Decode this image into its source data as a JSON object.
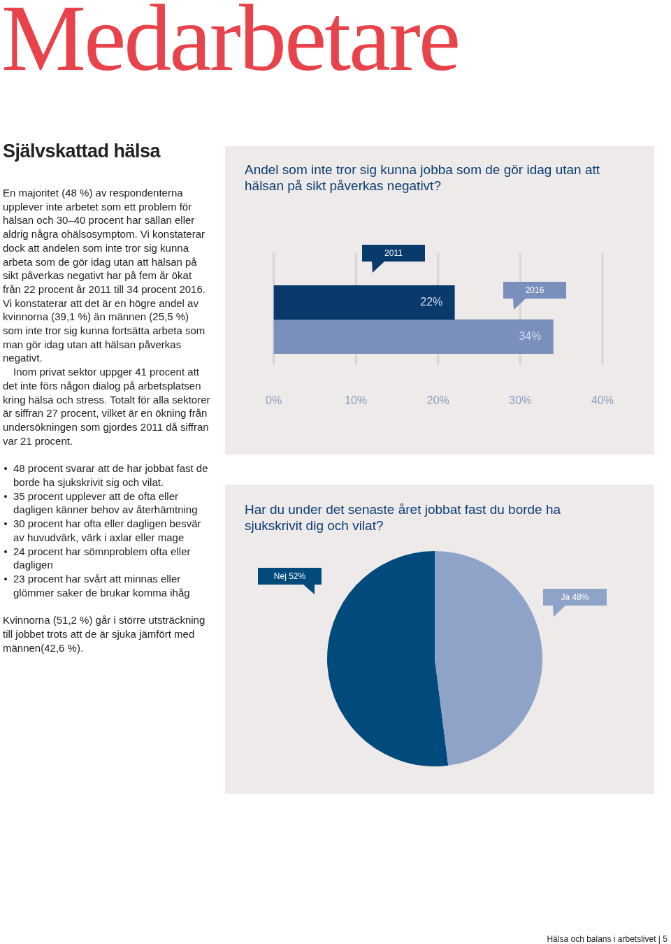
{
  "chart_data": [
    {
      "type": "other",
      "title": "Medarbetare",
      "subtitle": "Självskattad hälsa",
      "annotations": [
        "En majoritet (48 %) av respondenterna upplever inte arbetet som ett problem för hälsan och 30–40 procent har sällan eller aldrig några ohälsosymptom. Vi konstaterar dock att andelen som inte tror sig kunna arbeta som de gör idag utan att hälsan på sikt påverkas negativt har på fem år ökat från 22 procent år 2011 till 34 procent 2016. Vi konstaterar att det är en högre andel av kvinnorna (39,1 %) än männen (25,5 %) som inte tror sig kunna fortsätta arbeta som man gör idag utan att hälsan påverkas negativt.",
        "Inom privat sektor uppger 41 procent att det inte förs någon dialog på arbetsplatsen kring hälsa och stress. Totalt för alla sektorer är siffran 27 procent, vilket är en ökning från undersökningen som gjordes 2011 då siffran var 21 procent.",
        "48 procent svarar att de har jobbat fast de borde ha sjukskrivit sig och vilat.",
        "35 procent upplever att de ofta eller dagligen känner behov av återhämtning",
        "30 procent har ofta eller dagligen besvär av huvudvärk, värk i axlar eller mage",
        "24 procent har sömnproblem ofta eller dagligen",
        "23 procent har svårt att minnas eller glömmer saker de brukar komma ihåg",
        "Kvinnorna (51,2 %) går i större utsträckning till jobbet trots att de är sjuka jämfört med männen(42,6 %).",
        "Hälsa och balans i arbetslivet | 5"
      ]
    },
    {
      "type": "bar",
      "orientation": "horizontal",
      "title": "Andel som inte tror sig kunna jobba som de gör idag utan att hälsan på sikt påverkas negativt?",
      "categories": [
        null
      ],
      "series": [
        {
          "name": "2011",
          "color": "#0a3a6b",
          "values": [
            22
          ],
          "value_labels": [
            "22%"
          ]
        },
        {
          "name": "2016",
          "color": "#7b8fbc",
          "values": [
            34
          ],
          "value_labels": [
            "34%"
          ]
        }
      ],
      "xlim": [
        0,
        40
      ],
      "xticks": [
        {
          "value": 0,
          "label": "0%"
        },
        {
          "value": 10,
          "label": "10%"
        },
        {
          "value": 20,
          "label": "20%"
        },
        {
          "value": 30,
          "label": "30%"
        },
        {
          "value": 40,
          "label": "40%"
        }
      ],
      "grid": "x"
    },
    {
      "type": "pie",
      "title": "Har du under det senaste året jobbat fast du borde ha sjukskrivit dig och vilat?",
      "categories": [
        "Nej",
        "Ja"
      ],
      "values": [
        52,
        48
      ],
      "colors": [
        "#004a7c",
        "#8fa3c9"
      ],
      "value_labels": [
        "52%",
        "48%"
      ]
    }
  ]
}
